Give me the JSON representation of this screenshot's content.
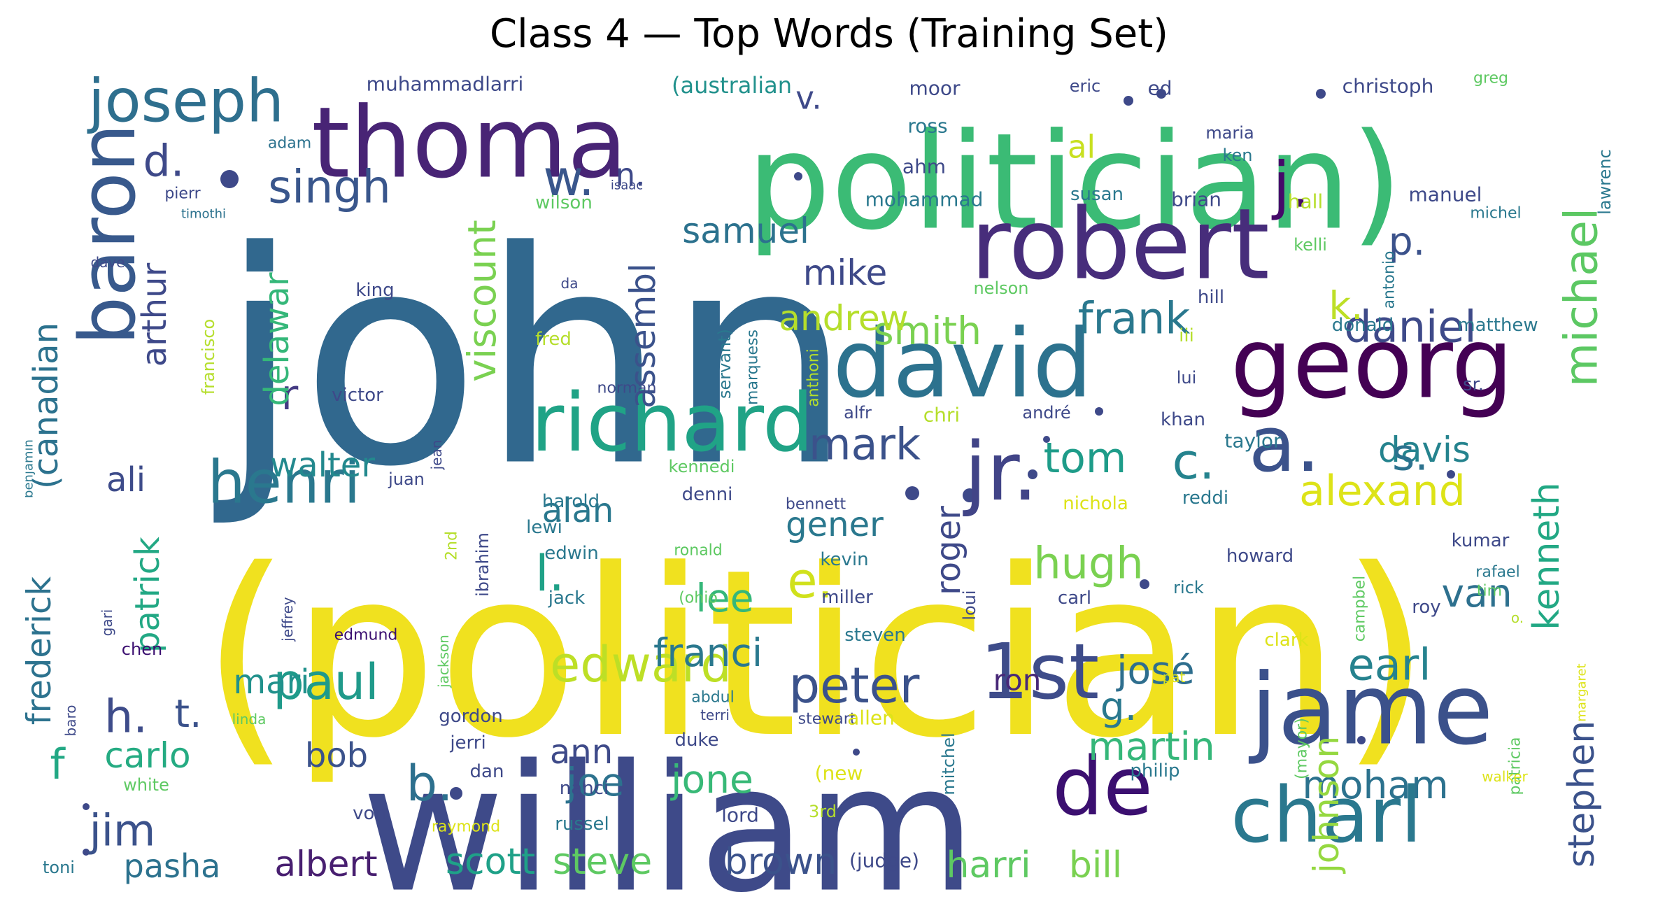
{
  "title": "Class 4 — Top Words (Training Set)",
  "words": [
    {
      "text": "(politician)",
      "color": "#f0e11f",
      "weight": 1.0
    },
    {
      "text": "john",
      "color": "#31688e",
      "weight": 0.95
    },
    {
      "text": "politician)",
      "color": "#3bbb75",
      "weight": 0.7
    },
    {
      "text": "william",
      "color": "#3e4a89",
      "weight": 0.7
    },
    {
      "text": "thoma",
      "color": "#482475",
      "weight": 0.45
    },
    {
      "text": "robert",
      "color": "#472d7b",
      "weight": 0.45
    },
    {
      "text": "david",
      "color": "#2c728e",
      "weight": 0.45
    },
    {
      "text": "georg",
      "color": "#440154",
      "weight": 0.45
    },
    {
      "text": "richard",
      "color": "#20a386",
      "weight": 0.4
    },
    {
      "text": "jame",
      "color": "#3b518b",
      "weight": 0.4
    },
    {
      "text": "charl",
      "color": "#2a788e",
      "weight": 0.35
    },
    {
      "text": "baron",
      "color": "#38598c",
      "weight": 0.35
    },
    {
      "text": "1st",
      "color": "#3e4c8a",
      "weight": 0.35
    },
    {
      "text": "de",
      "color": "#3b0f70",
      "weight": 0.3
    },
    {
      "text": "jr.",
      "color": "#414487",
      "weight": 0.3
    },
    {
      "text": "a.",
      "color": "#3b528b",
      "weight": 0.3
    },
    {
      "text": "joseph",
      "color": "#2e6f8e",
      "weight": 0.25
    },
    {
      "text": "henri",
      "color": "#2a788e",
      "weight": 0.25
    },
    {
      "text": "j.",
      "color": "#450a69",
      "weight": 0.25
    },
    {
      "text": "edward",
      "color": "#bddf26",
      "weight": 0.22
    },
    {
      "text": "michael",
      "color": "#5cc863",
      "weight": 0.2
    },
    {
      "text": "paul",
      "color": "#1f9a8a",
      "weight": 0.2
    },
    {
      "text": "peter",
      "color": "#3b528b",
      "weight": 0.2
    },
    {
      "text": "w.",
      "color": "#39568c",
      "weight": 0.2
    },
    {
      "text": "c.",
      "color": "#25838e",
      "weight": 0.2
    },
    {
      "text": "e.",
      "color": "#d0e11c",
      "weight": 0.2
    },
    {
      "text": "b.",
      "color": "#2d708e",
      "weight": 0.2
    },
    {
      "text": "l.",
      "color": "#1fa187",
      "weight": 0.2
    },
    {
      "text": "singh",
      "color": "#39568c",
      "weight": 0.17
    },
    {
      "text": "daniel",
      "color": "#3e4a89",
      "weight": 0.17
    },
    {
      "text": "frank",
      "color": "#2a788e",
      "weight": 0.17
    },
    {
      "text": "mark",
      "color": "#3b528b",
      "weight": 0.17
    },
    {
      "text": "earl",
      "color": "#26828e",
      "weight": 0.17
    },
    {
      "text": "hugh",
      "color": "#7ad151",
      "weight": 0.17
    },
    {
      "text": "jim",
      "color": "#3b528b",
      "weight": 0.17
    },
    {
      "text": "alexand",
      "color": "#dde318",
      "weight": 0.16
    },
    {
      "text": "tom",
      "color": "#1e9c89",
      "weight": 0.16
    },
    {
      "text": "davis",
      "color": "#25838e",
      "weight": 0.15
    },
    {
      "text": "s.",
      "color": "#2c728e",
      "weight": 0.17
    },
    {
      "text": "h.",
      "color": "#3e4c8a",
      "weight": 0.16
    },
    {
      "text": "t.",
      "color": "#3b528b",
      "weight": 0.14
    },
    {
      "text": "d.",
      "color": "#3e4989",
      "weight": 0.15
    },
    {
      "text": "p.",
      "color": "#3b528b",
      "weight": 0.14
    },
    {
      "text": "k.",
      "color": "#bddf26",
      "weight": 0.14
    },
    {
      "text": "g.",
      "color": "#2a788e",
      "weight": 0.14
    },
    {
      "text": "f",
      "color": "#22a884",
      "weight": 0.14
    },
    {
      "text": "r",
      "color": "#443a83",
      "weight": 0.14
    },
    {
      "text": "moham",
      "color": "#2c728e",
      "weight": 0.13
    },
    {
      "text": "martin",
      "color": "#35b779",
      "weight": 0.13
    },
    {
      "text": "franci",
      "color": "#2a788e",
      "weight": 0.13
    },
    {
      "text": "jone",
      "color": "#38b977",
      "weight": 0.13
    },
    {
      "text": "joe",
      "color": "#2c728e",
      "weight": 0.13
    },
    {
      "text": "josé",
      "color": "#2e6e8e",
      "weight": 0.13
    },
    {
      "text": "lee",
      "color": "#35b779",
      "weight": 0.13
    },
    {
      "text": "van",
      "color": "#2d708e",
      "weight": 0.13
    },
    {
      "text": "smith",
      "color": "#7ad151",
      "weight": 0.13
    },
    {
      "text": "andrew",
      "color": "#b5de2b",
      "weight": 0.13
    },
    {
      "text": "samuel",
      "color": "#2c728e",
      "weight": 0.12
    },
    {
      "text": "mike",
      "color": "#3e4989",
      "weight": 0.12
    },
    {
      "text": "carlo",
      "color": "#25ab82",
      "weight": 0.12
    },
    {
      "text": "albert",
      "color": "#481f70",
      "weight": 0.12
    },
    {
      "text": "scott",
      "color": "#1fa188",
      "weight": 0.12
    },
    {
      "text": "steve",
      "color": "#5ec962",
      "weight": 0.12
    },
    {
      "text": "brown",
      "color": "#3b528b",
      "weight": 0.12
    },
    {
      "text": "harri",
      "color": "#5ec962",
      "weight": 0.12
    },
    {
      "text": "bill",
      "color": "#7ad151",
      "weight": 0.12
    },
    {
      "text": "pasha",
      "color": "#2c728e",
      "weight": 0.11
    },
    {
      "text": "walter",
      "color": "#23898e",
      "weight": 0.11
    },
    {
      "text": "ali",
      "color": "#3e4c8a",
      "weight": 0.11
    },
    {
      "text": "alan",
      "color": "#2a788e",
      "weight": 0.11
    },
    {
      "text": "gener",
      "color": "#2a788e",
      "weight": 0.11
    },
    {
      "text": "ann",
      "color": "#3e4a89",
      "weight": 0.11
    },
    {
      "text": "bob",
      "color": "#3b528b",
      "weight": 0.11
    },
    {
      "text": "mari",
      "color": "#21918c",
      "weight": 0.11
    },
    {
      "text": "ron",
      "color": "#482878",
      "weight": 0.1
    },
    {
      "text": "al",
      "color": "#c8e020",
      "weight": 0.1
    },
    {
      "text": "n.",
      "color": "#3e4989",
      "weight": 0.1
    },
    {
      "text": "v.",
      "color": "#3e4989",
      "weight": 0.1
    },
    {
      "text": "kenneth",
      "color": "#22a884",
      "weight": 0.12
    },
    {
      "text": "johnson",
      "color": "#95d840",
      "weight": 0.12
    },
    {
      "text": "stephen",
      "color": "#3b528b",
      "weight": 0.12
    },
    {
      "text": "viscount",
      "color": "#7ad151",
      "weight": 0.12
    },
    {
      "text": "assembl",
      "color": "#3b528b",
      "weight": 0.11
    },
    {
      "text": "roger",
      "color": "#3e4989",
      "weight": 0.11
    },
    {
      "text": "patrick",
      "color": "#22a884",
      "weight": 0.11
    },
    {
      "text": "arthur",
      "color": "#3e4989",
      "weight": 0.1
    },
    {
      "text": "delawar",
      "color": "#35b779",
      "weight": 0.1
    },
    {
      "text": "(canadian",
      "color": "#2c728e",
      "weight": 0.1
    },
    {
      "text": "frederick",
      "color": "#2c728e",
      "weight": 0.1
    },
    {
      "text": "muhammadlarri",
      "color": "#3e4989",
      "weight": 0.05
    },
    {
      "text": "(australian",
      "color": "#21918c",
      "weight": 0.06
    },
    {
      "text": "moor",
      "color": "#3e4989",
      "weight": 0.05
    },
    {
      "text": "eric",
      "color": "#3e4989",
      "weight": 0.04
    },
    {
      "text": "ed",
      "color": "#3e4989",
      "weight": 0.05
    },
    {
      "text": "christoph",
      "color": "#3e4989",
      "weight": 0.05
    },
    {
      "text": "greg",
      "color": "#5ec962",
      "weight": 0.04
    },
    {
      "text": "ross",
      "color": "#2a788e",
      "weight": 0.05
    },
    {
      "text": "maria",
      "color": "#3e4989",
      "weight": 0.04
    },
    {
      "text": "ahm",
      "color": "#3e4989",
      "weight": 0.05
    },
    {
      "text": "ken",
      "color": "#2a788e",
      "weight": 0.04
    },
    {
      "text": "lawrenc",
      "color": "#2a788e",
      "weight": 0.04
    },
    {
      "text": "adam",
      "color": "#2c728e",
      "weight": 0.04
    },
    {
      "text": "isaac",
      "color": "#3e4989",
      "weight": 0.03
    },
    {
      "text": "pierr",
      "color": "#3e4989",
      "weight": 0.04
    },
    {
      "text": "timothi",
      "color": "#2c728e",
      "weight": 0.03
    },
    {
      "text": "wilson",
      "color": "#5ec962",
      "weight": 0.04
    },
    {
      "text": "mohammad",
      "color": "#2a788e",
      "weight": 0.05
    },
    {
      "text": "susan",
      "color": "#2a788e",
      "weight": 0.04
    },
    {
      "text": "brian",
      "color": "#3e4989",
      "weight": 0.05
    },
    {
      "text": "hall",
      "color": "#b5de2b",
      "weight": 0.05
    },
    {
      "text": "manuel",
      "color": "#3e4989",
      "weight": 0.05
    },
    {
      "text": "michel",
      "color": "#2a788e",
      "weight": 0.04
    },
    {
      "text": "kelli",
      "color": "#5ec962",
      "weight": 0.04
    },
    {
      "text": "antonio",
      "color": "#2a788e",
      "weight": 0.04
    },
    {
      "text": "dave",
      "color": "#3e4989",
      "weight": 0.03
    },
    {
      "text": "francisco",
      "color": "#b5de2b",
      "weight": 0.04
    },
    {
      "text": "king",
      "color": "#3e4989",
      "weight": 0.05
    },
    {
      "text": "da",
      "color": "#3e4989",
      "weight": 0.04
    },
    {
      "text": "nelson",
      "color": "#5ec962",
      "weight": 0.05
    },
    {
      "text": "hill",
      "color": "#3e4989",
      "weight": 0.05
    },
    {
      "text": "donald",
      "color": "#2a788e",
      "weight": 0.05
    },
    {
      "text": "matthew",
      "color": "#2a788e",
      "weight": 0.05
    },
    {
      "text": "fred",
      "color": "#b5de2b",
      "weight": 0.05
    },
    {
      "text": "servant)",
      "color": "#2a788e",
      "weight": 0.04
    },
    {
      "text": "marquess",
      "color": "#2a788e",
      "weight": 0.04
    },
    {
      "text": "iii",
      "color": "#b5de2b",
      "weight": 0.05
    },
    {
      "text": "anthoni",
      "color": "#b5de2b",
      "weight": 0.04
    },
    {
      "text": "norman",
      "color": "#3e4989",
      "weight": 0.04
    },
    {
      "text": "lui",
      "color": "#3e4989",
      "weight": 0.04
    },
    {
      "text": "sr.",
      "color": "#3e4989",
      "weight": 0.05
    },
    {
      "text": "victor",
      "color": "#3e4989",
      "weight": 0.05
    },
    {
      "text": "benjamin",
      "color": "#2a788e",
      "weight": 0.04
    },
    {
      "text": "jean",
      "color": "#3e4989",
      "weight": 0.04
    },
    {
      "text": "alfr",
      "color": "#3e4989",
      "weight": 0.04
    },
    {
      "text": "chri",
      "color": "#b5de2b",
      "weight": 0.05
    },
    {
      "text": "andré",
      "color": "#3e4989",
      "weight": 0.04
    },
    {
      "text": "khan",
      "color": "#3e4989",
      "weight": 0.05
    },
    {
      "text": "taylor",
      "color": "#2a788e",
      "weight": 0.05
    },
    {
      "text": "juan",
      "color": "#3e4989",
      "weight": 0.05
    },
    {
      "text": "kennedi",
      "color": "#5ec962",
      "weight": 0.05
    },
    {
      "text": "denni",
      "color": "#3e4989",
      "weight": 0.05
    },
    {
      "text": "harold",
      "color": "#2a788e",
      "weight": 0.05
    },
    {
      "text": "bennett",
      "color": "#3e4989",
      "weight": 0.04
    },
    {
      "text": "nichola",
      "color": "#dde318",
      "weight": 0.05
    },
    {
      "text": "reddi",
      "color": "#2a788e",
      "weight": 0.05
    },
    {
      "text": "lewi",
      "color": "#2a788e",
      "weight": 0.05
    },
    {
      "text": "edwin",
      "color": "#2a788e",
      "weight": 0.05
    },
    {
      "text": "ronald",
      "color": "#5ec962",
      "weight": 0.04
    },
    {
      "text": "kevin",
      "color": "#2a788e",
      "weight": 0.05
    },
    {
      "text": "howard",
      "color": "#3e4989",
      "weight": 0.05
    },
    {
      "text": "kumar",
      "color": "#3e4989",
      "weight": 0.05
    },
    {
      "text": "rafael",
      "color": "#2a788e",
      "weight": 0.04
    },
    {
      "text": "tim",
      "color": "#5ec962",
      "weight": 0.04
    },
    {
      "text": "2nd",
      "color": "#b5de2b",
      "weight": 0.04
    },
    {
      "text": "ibrahim",
      "color": "#3e4989",
      "weight": 0.04
    },
    {
      "text": "jeffrey",
      "color": "#3e4989",
      "weight": 0.04
    },
    {
      "text": "gari",
      "color": "#3e4989",
      "weight": 0.04
    },
    {
      "text": "jack",
      "color": "#2a788e",
      "weight": 0.05
    },
    {
      "text": "(ohio",
      "color": "#5ec962",
      "weight": 0.04
    },
    {
      "text": "miller",
      "color": "#3e4989",
      "weight": 0.05
    },
    {
      "text": "loui",
      "color": "#3e4989",
      "weight": 0.04
    },
    {
      "text": "carl",
      "color": "#3e4989",
      "weight": 0.05
    },
    {
      "text": "rick",
      "color": "#2a788e",
      "weight": 0.04
    },
    {
      "text": "campbel",
      "color": "#5ec962",
      "weight": 0.04
    },
    {
      "text": "roy",
      "color": "#3e4989",
      "weight": 0.05
    },
    {
      "text": "o.",
      "color": "#b5de2b",
      "weight": 0.04
    },
    {
      "text": "edmund",
      "color": "#3b0f70",
      "weight": 0.04
    },
    {
      "text": "jackson",
      "color": "#5ec962",
      "weight": 0.04
    },
    {
      "text": "steven",
      "color": "#2a788e",
      "weight": 0.05
    },
    {
      "text": "clark",
      "color": "#dde318",
      "weight": 0.05
    },
    {
      "text": "chen",
      "color": "#3b0f70",
      "weight": 0.05
    },
    {
      "text": "pat",
      "color": "#dde318",
      "weight": 0.04
    },
    {
      "text": "margaret",
      "color": "#dde318",
      "weight": 0.03
    },
    {
      "text": "baro",
      "color": "#3e4989",
      "weight": 0.04
    },
    {
      "text": "linda",
      "color": "#5ec962",
      "weight": 0.03
    },
    {
      "text": "gordon",
      "color": "#3e4989",
      "weight": 0.05
    },
    {
      "text": "abdul",
      "color": "#2a788e",
      "weight": 0.04
    },
    {
      "text": "terri",
      "color": "#3e4989",
      "weight": 0.04
    },
    {
      "text": "stewart",
      "color": "#3e4989",
      "weight": 0.04
    },
    {
      "text": "allen",
      "color": "#dde318",
      "weight": 0.05
    },
    {
      "text": "mitchel",
      "color": "#2a788e",
      "weight": 0.04
    },
    {
      "text": "(mayor)",
      "color": "#5ec962",
      "weight": 0.04
    },
    {
      "text": "patricia",
      "color": "#5ec962",
      "weight": 0.04
    },
    {
      "text": "jerri",
      "color": "#3e4989",
      "weight": 0.05
    },
    {
      "text": "duke",
      "color": "#3e4989",
      "weight": 0.05
    },
    {
      "text": "philip",
      "color": "#2a788e",
      "weight": 0.04
    },
    {
      "text": "walker",
      "color": "#dde318",
      "weight": 0.04
    },
    {
      "text": "white",
      "color": "#5ec962",
      "weight": 0.04
    },
    {
      "text": "dan",
      "color": "#3e4989",
      "weight": 0.05
    },
    {
      "text": "nanci",
      "color": "#3e4989",
      "weight": 0.05
    },
    {
      "text": "(new",
      "color": "#dde318",
      "weight": 0.05
    },
    {
      "text": "von",
      "color": "#3e4989",
      "weight": 0.05
    },
    {
      "text": "lord",
      "color": "#3e4989",
      "weight": 0.05
    },
    {
      "text": "3rd",
      "color": "#b5de2b",
      "weight": 0.04
    },
    {
      "text": "raymond",
      "color": "#dde318",
      "weight": 0.04
    },
    {
      "text": "russel",
      "color": "#2a788e",
      "weight": 0.05
    },
    {
      "text": "toni",
      "color": "#2a788e",
      "weight": 0.04
    },
    {
      "text": "(judge)",
      "color": "#3e4989",
      "weight": 0.05
    }
  ]
}
